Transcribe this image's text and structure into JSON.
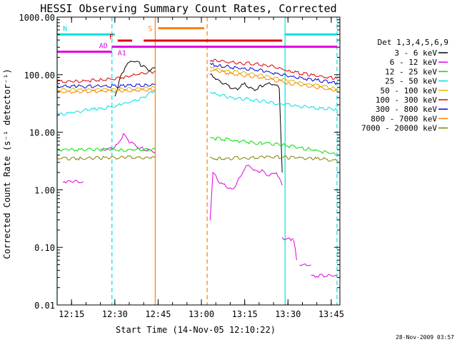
{
  "chart_data": {
    "type": "line",
    "title": "HESSI Observing Summary Count Rates, Corrected",
    "xlabel": "Start Time (14-Nov-05 12:10:22)",
    "ylabel": "Corrected Count Rate (s⁻¹ detector⁻¹)",
    "yscale": "log",
    "ylim": [
      0.01,
      1000
    ],
    "xlim": [
      "12:10",
      "13:48"
    ],
    "xticks": [
      "12:15",
      "12:30",
      "12:45",
      "13:00",
      "13:15",
      "13:30",
      "13:45"
    ],
    "yticks": [
      "0.01",
      "0.10",
      "1.00",
      "10.00",
      "100.00",
      "1000.00"
    ],
    "grid": false,
    "legend_position": "right",
    "legend_title": "Det 1,3,4,5,6,9",
    "timestamp": "28-Nov-2009 03:57",
    "series": [
      {
        "name": "3 - 6 keV",
        "color": "#000000",
        "segments": [
          {
            "t": [
              "12:30",
              "12:32",
              "12:34",
              "12:36",
              "12:38",
              "12:40",
              "12:42",
              "12:44"
            ],
            "v": [
              40,
              90,
              150,
              175,
              160,
              140,
              120,
              130
            ]
          },
          {
            "t": [
              "13:03",
              "13:06",
              "13:09",
              "13:12",
              "13:15",
              "13:18",
              "13:21",
              "13:24",
              "13:27",
              "13:28"
            ],
            "v": [
              100,
              80,
              65,
              55,
              70,
              55,
              65,
              72,
              60,
              2
            ]
          }
        ]
      },
      {
        "name": "6 - 12 keV",
        "color": "#e000e0",
        "segments": [
          {
            "t": [
              "12:12",
              "12:19"
            ],
            "v": [
              1.4,
              1.4
            ]
          },
          {
            "t": [
              "12:25",
              "12:28",
              "12:31",
              "12:33",
              "12:35",
              "12:38",
              "12:41",
              "12:44"
            ],
            "v": [
              5,
              5,
              6,
              9,
              7,
              5.5,
              5,
              4.5
            ]
          },
          {
            "t": [
              "13:03",
              "13:04",
              "13:06",
              "13:09",
              "13:11",
              "13:13",
              "13:15",
              "13:17",
              "13:19",
              "13:21",
              "13:23",
              "13:26",
              "13:28"
            ],
            "v": [
              0.3,
              2,
              1.4,
              1.1,
              1.0,
              1.5,
              2.4,
              2.6,
              2.0,
              2.2,
              1.8,
              2.0,
              1.2
            ]
          },
          {
            "t": [
              "13:28",
              "13:32"
            ],
            "v": [
              0.14,
              0.14
            ]
          },
          {
            "t": [
              "13:32",
              "13:33"
            ],
            "v": [
              0.14,
              0.06
            ]
          },
          {
            "t": [
              "13:34",
              "13:38"
            ],
            "v": [
              0.05,
              0.05
            ]
          },
          {
            "t": [
              "13:38",
              "13:47"
            ],
            "v": [
              0.032,
              0.032
            ]
          }
        ]
      },
      {
        "name": "12 - 25 keV",
        "color": "#00e000",
        "segments": [
          {
            "t": [
              "12:10",
              "12:20",
              "12:25",
              "12:30",
              "12:35",
              "12:40",
              "12:44"
            ],
            "v": [
              5,
              5,
              5,
              5,
              5,
              5,
              5
            ]
          },
          {
            "t": [
              "13:03",
              "13:08",
              "13:13",
              "13:18",
              "13:23",
              "13:28",
              "13:33",
              "13:38",
              "13:43",
              "13:47"
            ],
            "v": [
              8,
              7.5,
              7,
              6.5,
              6.5,
              6,
              5.5,
              5,
              4.5,
              4
            ]
          }
        ]
      },
      {
        "name": "25 - 50 keV",
        "color": "#00e0e0",
        "segments": [
          {
            "t": [
              "12:10",
              "12:15",
              "12:20",
              "12:25",
              "12:30",
              "12:35",
              "12:40",
              "12:44"
            ],
            "v": [
              20,
              22,
              24,
              26,
              28,
              33,
              40,
              55
            ]
          },
          {
            "t": [
              "13:03",
              "13:06",
              "13:10",
              "13:15",
              "13:20",
              "13:25",
              "13:30",
              "13:35",
              "13:40",
              "13:47"
            ],
            "v": [
              50,
              45,
              40,
              38,
              35,
              32,
              30,
              28,
              26,
              25
            ]
          }
        ]
      },
      {
        "name": "50 - 100 keV",
        "color": "#d8b800",
        "segments": [
          {
            "t": [
              "12:10",
              "12:30",
              "12:44"
            ],
            "v": [
              55,
              55,
              60
            ]
          },
          {
            "t": [
              "13:03",
              "13:10",
              "13:20",
              "13:30",
              "13:40",
              "13:47"
            ],
            "v": [
              130,
              115,
              100,
              80,
              65,
              58
            ]
          }
        ]
      },
      {
        "name": "100 - 300 keV",
        "color": "#e00000",
        "segments": [
          {
            "t": [
              "12:10",
              "12:20",
              "12:30",
              "12:35",
              "12:40",
              "12:44"
            ],
            "v": [
              75,
              78,
              85,
              95,
              105,
              115
            ]
          },
          {
            "t": [
              "13:03",
              "13:10",
              "13:20",
              "13:25",
              "13:30",
              "13:40",
              "13:47"
            ],
            "v": [
              180,
              165,
              150,
              140,
              115,
              95,
              85
            ]
          }
        ]
      },
      {
        "name": "300 - 800 keV",
        "color": "#0000e0",
        "segments": [
          {
            "t": [
              "12:10",
              "12:30",
              "12:44"
            ],
            "v": [
              62,
              63,
              68
            ]
          },
          {
            "t": [
              "13:03",
              "13:10",
              "13:20",
              "13:30",
              "13:40",
              "13:47"
            ],
            "v": [
              150,
              135,
              120,
              95,
              80,
              72
            ]
          }
        ]
      },
      {
        "name": "800 - 7000 keV",
        "color": "#ff8000",
        "segments": [
          {
            "t": [
              "12:10",
              "12:30",
              "12:44"
            ],
            "v": [
              50,
              52,
              55
            ]
          },
          {
            "t": [
              "13:03",
              "13:10",
              "13:20",
              "13:30",
              "13:40",
              "13:47"
            ],
            "v": [
              120,
              105,
              90,
              72,
              60,
              52
            ]
          }
        ]
      },
      {
        "name": "7000 - 20000 keV",
        "color": "#808000",
        "segments": [
          {
            "t": [
              "12:10",
              "12:20",
              "12:25",
              "12:30",
              "12:35",
              "12:40",
              "12:44"
            ],
            "v": [
              3.5,
              3.5,
              3.6,
              3.6,
              3.7,
              3.6,
              3.7
            ]
          },
          {
            "t": [
              "13:03",
              "13:08",
              "13:13",
              "13:18",
              "13:23",
              "13:28",
              "13:33",
              "13:38",
              "13:43",
              "13:47"
            ],
            "v": [
              3.5,
              3.5,
              3.6,
              3.6,
              3.7,
              3.7,
              3.6,
              3.5,
              3.4,
              3.2
            ]
          }
        ]
      }
    ],
    "flags": [
      {
        "label": "N",
        "color": "#00e0e0",
        "bars": [
          [
            "12:10",
            "12:30"
          ],
          [
            "13:29",
            "13:47"
          ]
        ],
        "level": 500
      },
      {
        "label": "S",
        "color": "#ff8000",
        "bars": [
          [
            "12:45",
            "13:01"
          ]
        ],
        "level": 640
      },
      {
        "label": "F",
        "color": "#e00000",
        "bars": [
          [
            "12:31",
            "12:36"
          ],
          [
            "12:40",
            "13:28"
          ]
        ],
        "level": 390
      },
      {
        "label": "AD",
        "color": "#e000e0",
        "bars": [
          [
            "12:10",
            "12:29"
          ]
        ],
        "level": 250
      },
      {
        "label": "A1",
        "color": "#e000e0",
        "bars": [
          [
            "12:29",
            "13:47"
          ]
        ],
        "level": 305
      }
    ],
    "vlines": [
      {
        "t": "12:10",
        "color": "#00e0e0",
        "style": "solid"
      },
      {
        "t": "12:29",
        "color": "#00e0e0",
        "style": "dashed"
      },
      {
        "t": "12:44",
        "color": "#ff8000",
        "style": "solid"
      },
      {
        "t": "13:02",
        "color": "#ff8000",
        "style": "dashed"
      },
      {
        "t": "13:29",
        "color": "#00e0e0",
        "style": "solid"
      },
      {
        "t": "13:47",
        "color": "#00e0e0",
        "style": "dashed"
      }
    ]
  }
}
